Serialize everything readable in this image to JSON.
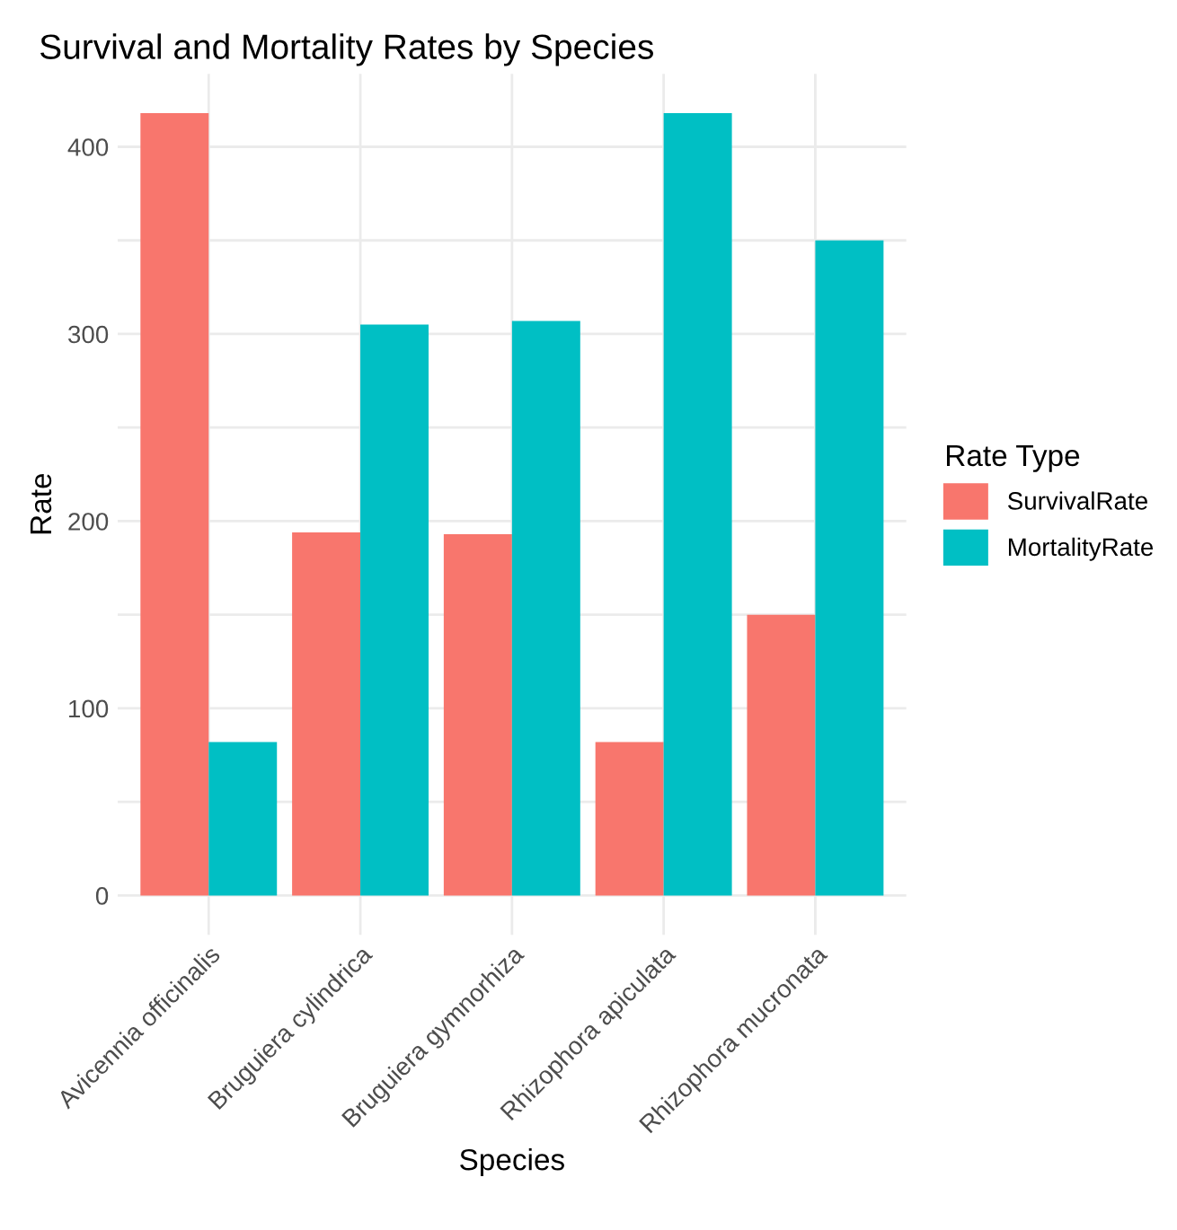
{
  "chart_data": {
    "type": "bar",
    "title": "Survival and Mortality Rates by Species",
    "xlabel": "Species",
    "ylabel": "Rate",
    "legend_title": "Rate Type",
    "categories": [
      "Avicennia officinalis",
      "Bruguiera cylindrica",
      "Bruguiera gymnorhiza",
      "Rhizophora apiculata",
      "Rhizophora mucronata"
    ],
    "series": [
      {
        "name": "SurvivalRate",
        "color": "#f8766d",
        "values": [
          418,
          194,
          193,
          82,
          150
        ]
      },
      {
        "name": "MortalityRate",
        "color": "#00bfc4",
        "values": [
          82,
          305,
          307,
          418,
          350
        ]
      }
    ],
    "ylim": [
      -21,
      439
    ],
    "yticks": [
      0,
      {
        "value": 50,
        "label": null
      },
      100,
      {
        "value": 150,
        "label": null
      },
      200,
      {
        "value": 250,
        "label": null
      },
      300,
      {
        "value": 350,
        "label": null
      },
      400
    ],
    "grid": true,
    "legend": "right"
  }
}
